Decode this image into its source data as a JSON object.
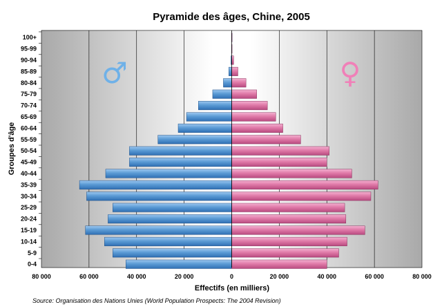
{
  "chart_data": {
    "type": "bar",
    "orientation": "horizontal",
    "title": "Pyramide des âges, Chine, 2005",
    "xlabel": "Effectifs (en milliers)",
    "ylabel": "Groupes d'âge",
    "source": "Source: Organisation des Nations Unies (World Population Prospects: The 2004 Revision)",
    "categories": [
      "0-4",
      "5-9",
      "10-14",
      "15-19",
      "20-24",
      "25-29",
      "30-34",
      "35-39",
      "40-44",
      "45-49",
      "50-54",
      "55-59",
      "60-64",
      "65-69",
      "70-74",
      "75-79",
      "80-84",
      "85-89",
      "90-94",
      "95-99",
      "100+"
    ],
    "series": [
      {
        "symbol": "♂",
        "color": "#5b9bd5",
        "side": "left",
        "values": [
          44500,
          50000,
          53500,
          61500,
          52000,
          50000,
          61000,
          64000,
          53000,
          43000,
          43000,
          31000,
          22500,
          19000,
          14000,
          8000,
          3500,
          1200,
          300,
          50,
          5
        ]
      },
      {
        "symbol": "♀",
        "color": "#e07aa8",
        "side": "right",
        "values": [
          40000,
          45000,
          48500,
          56000,
          48000,
          47500,
          58500,
          61500,
          50500,
          40000,
          41000,
          29000,
          21500,
          18500,
          15000,
          10500,
          6000,
          2600,
          800,
          150,
          10
        ]
      }
    ],
    "xlim": [
      -80000,
      80000
    ],
    "xticks": [
      -80000,
      -60000,
      -40000,
      -20000,
      0,
      20000,
      40000,
      60000,
      80000
    ],
    "xtick_labels": [
      "80 000",
      "60 000",
      "40 000",
      "20 000",
      "0",
      "20 000",
      "40 000",
      "60 000",
      "80 000"
    ],
    "grid": "vertical",
    "colors": {
      "background": "#ffffff",
      "plot_background": "#c8c8c8",
      "grid": "#000000",
      "male": "#5b9bd5",
      "female": "#e07aa8",
      "male_symbol": "#6fb1e8",
      "female_symbol": "#f080b8"
    }
  }
}
